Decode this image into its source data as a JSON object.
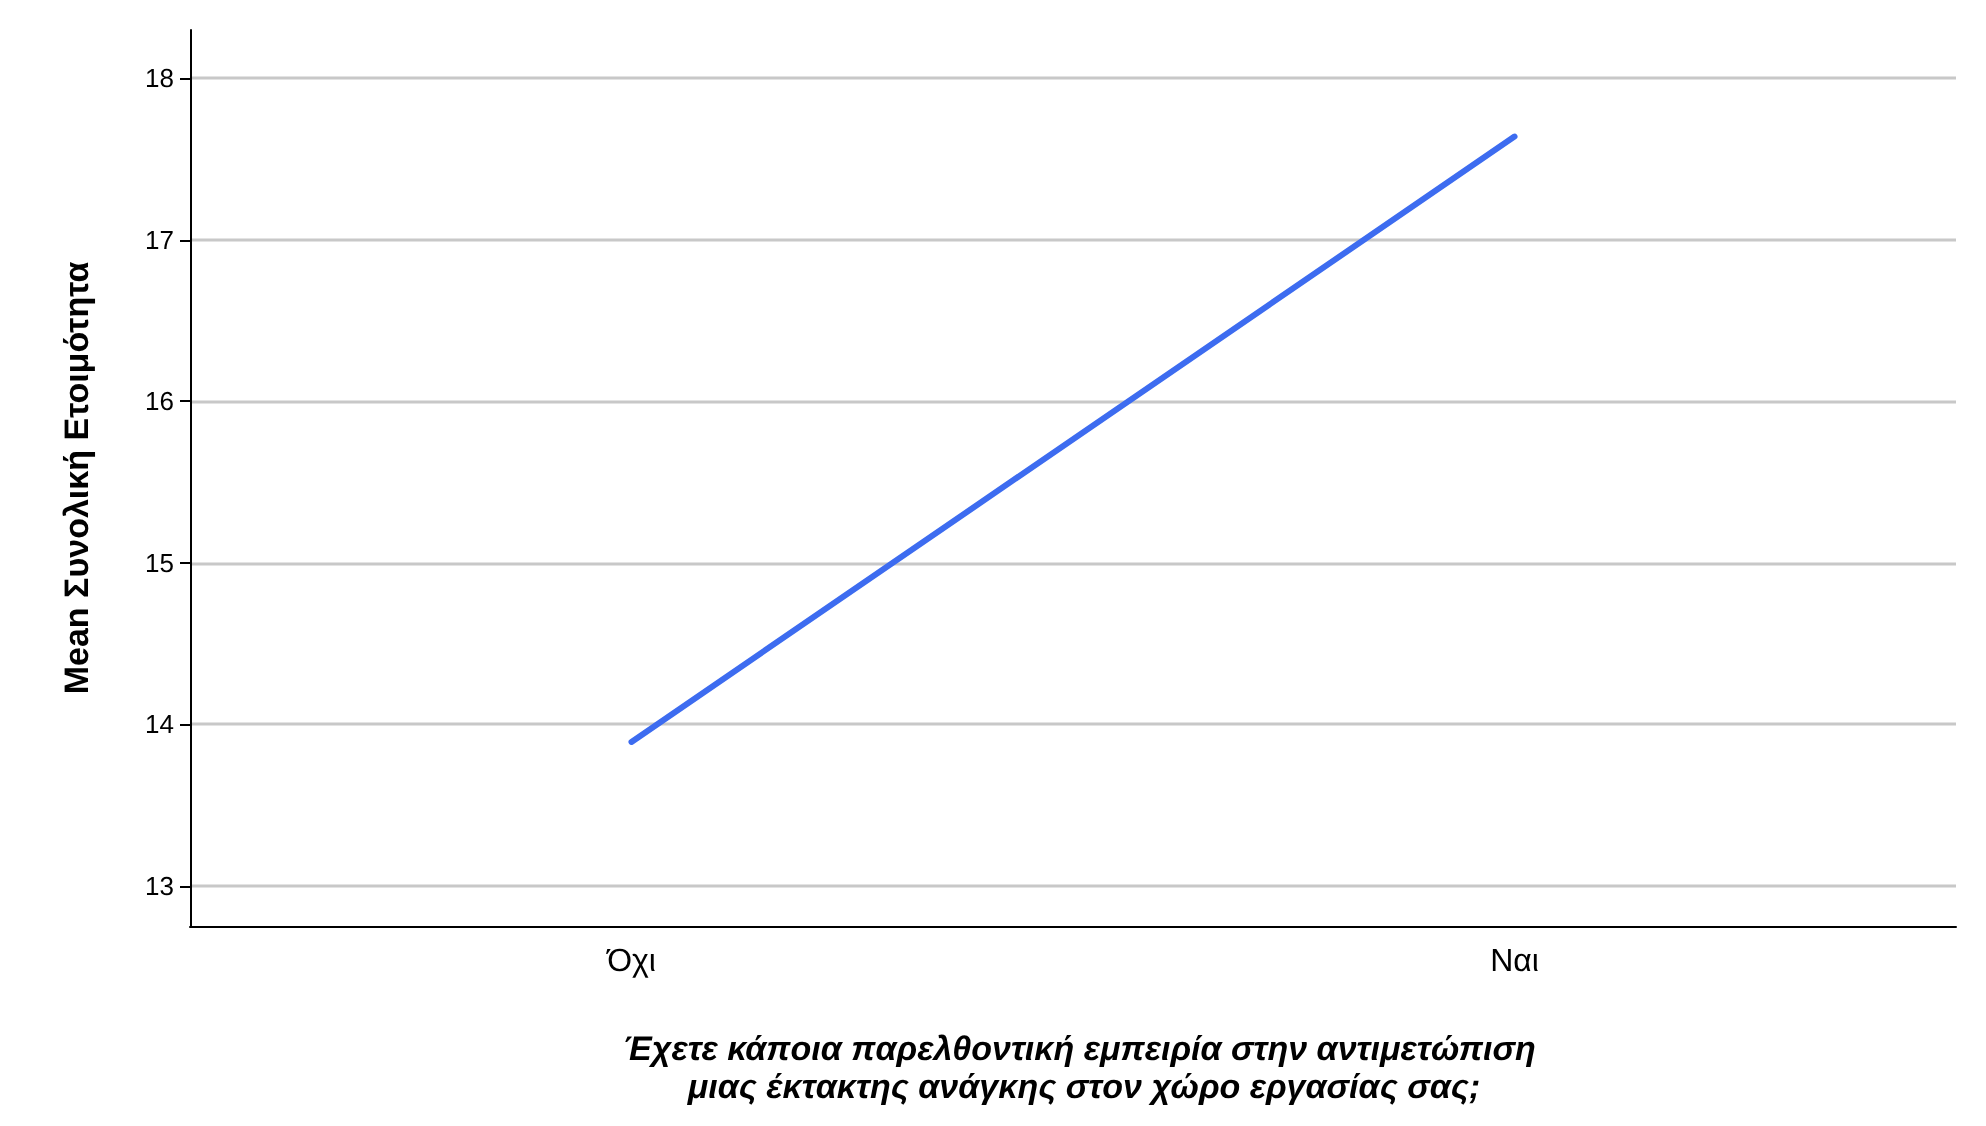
{
  "chart_data": {
    "type": "line",
    "xlabel": "Έχετε κάποια παρελθοντική εμπειρία στην αντιμετώπιση μιας έκτακτης ανάγκης στον χώρο εργασίας σας;",
    "ylabel": "Mean Συνολική Ετοιμότητα",
    "categories": [
      "Όχι",
      "Ναι"
    ],
    "series": [
      {
        "color": "#3d6cf0",
        "values": [
          13.89,
          17.64
        ]
      }
    ],
    "ylim": [
      12.75,
      18.3
    ],
    "yticks": [
      13,
      14,
      15,
      16,
      17,
      18
    ],
    "grid": "y",
    "marker": "none",
    "line_style": "solid"
  }
}
